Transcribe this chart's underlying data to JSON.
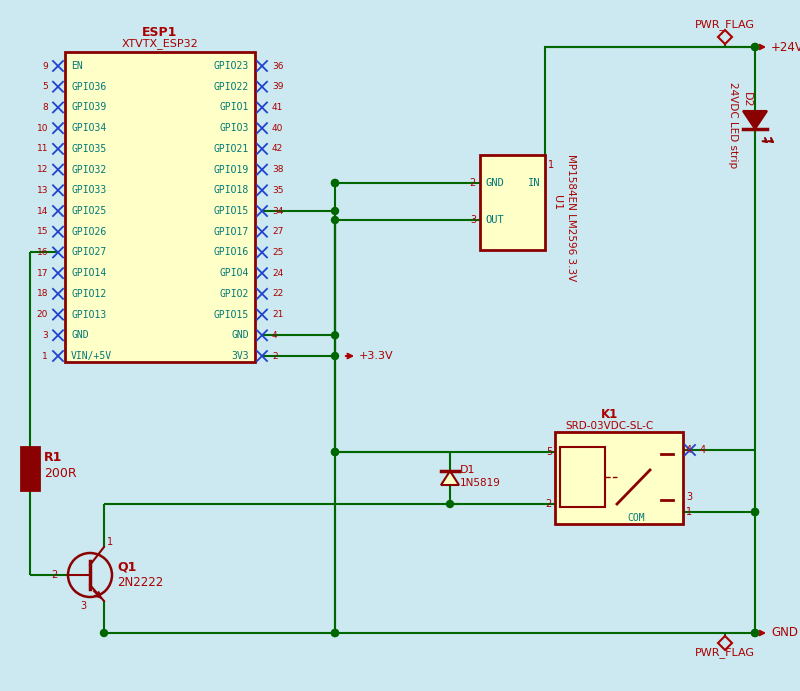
{
  "bg_color": "#cce8f0",
  "wire_color": "#006600",
  "border_color": "#8b0000",
  "fill_color": "#ffffc8",
  "teal": "#007878",
  "red_txt": "#aa0000",
  "blue_pin": "#2244cc",
  "fig_w": 8.0,
  "fig_h": 6.91,
  "dpi": 100,
  "esp_left_pins": [
    "EN",
    "GPIO36",
    "GPIO39",
    "GPIO34",
    "GPIO35",
    "GPIO32",
    "GPIO33",
    "GPIO25",
    "GPIO26",
    "GPIO27",
    "GPIO14",
    "GPIO12",
    "GPIO13",
    "GND",
    "VIN/+5V"
  ],
  "esp_left_nums": [
    "9",
    "5",
    "8",
    "10",
    "11",
    "12",
    "13",
    "14",
    "15",
    "16",
    "17",
    "18",
    "20",
    "3",
    "1"
  ],
  "esp_right_pins": [
    "GPIO23",
    "GPIO22",
    "GPIO1",
    "GPIO3",
    "GPIO21",
    "GPIO19",
    "GPIO18",
    "GPIO15",
    "GPIO17",
    "GPIO16",
    "GPIO4",
    "GPIO2",
    "GPIO15",
    "GND",
    "3V3"
  ],
  "esp_right_nums": [
    "36",
    "39",
    "41",
    "40",
    "42",
    "38",
    "35",
    "34",
    "27",
    "25",
    "24",
    "22",
    "21",
    "4",
    "2"
  ]
}
